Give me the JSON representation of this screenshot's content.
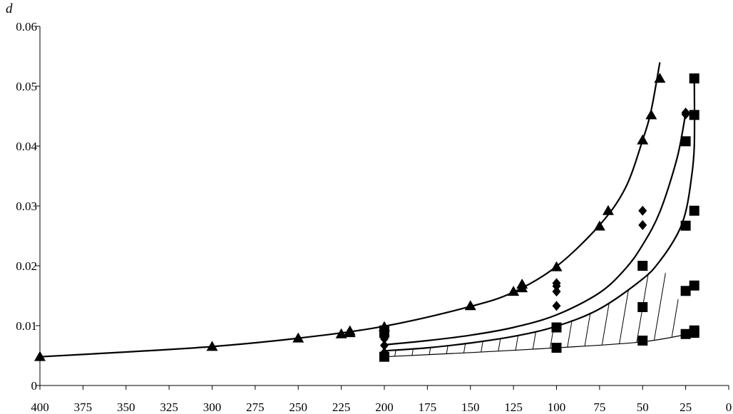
{
  "chart_data": {
    "type": "scatter",
    "title": "",
    "xlabel": "",
    "ylabel": "d",
    "xlim": [
      400,
      0
    ],
    "ylim": [
      0,
      0.06
    ],
    "x_reversed": true,
    "x_ticks": [
      400,
      375,
      350,
      325,
      300,
      275,
      250,
      225,
      200,
      175,
      150,
      125,
      100,
      75,
      50,
      25,
      0
    ],
    "y_ticks": [
      0,
      0.01,
      0.02,
      0.03,
      0.04,
      0.05,
      0.06
    ],
    "y_tick_labels": [
      "0",
      "0.01",
      "0.02",
      "0.03",
      "0.04",
      "0.05",
      "0.06"
    ],
    "grid": false,
    "legend": "none",
    "series": [
      {
        "marker": "triangle",
        "points": [
          [
            400,
            0.0048
          ],
          [
            300,
            0.0065
          ],
          [
            250,
            0.0079
          ],
          [
            225,
            0.0086
          ],
          [
            220,
            0.0088
          ],
          [
            220,
            0.0091
          ],
          [
            200,
            0.0098
          ],
          [
            150,
            0.0133
          ],
          [
            125,
            0.0157
          ],
          [
            120,
            0.0163
          ],
          [
            120,
            0.0169
          ],
          [
            100,
            0.0198
          ],
          [
            75,
            0.0266
          ],
          [
            70,
            0.0292
          ],
          [
            50,
            0.041
          ],
          [
            45,
            0.0452
          ],
          [
            40,
            0.0513
          ]
        ]
      },
      {
        "marker": "diamond",
        "points": [
          [
            200,
            0.0055
          ],
          [
            200,
            0.0067
          ],
          [
            200,
            0.0078
          ],
          [
            100,
            0.0133
          ],
          [
            100,
            0.0157
          ],
          [
            100,
            0.0166
          ],
          [
            100,
            0.0171
          ],
          [
            50,
            0.0268
          ],
          [
            50,
            0.0292
          ],
          [
            25,
            0.0453
          ],
          [
            25,
            0.0456
          ]
        ]
      },
      {
        "marker": "square",
        "points": [
          [
            200,
            0.0048
          ],
          [
            200,
            0.0088
          ],
          [
            200,
            0.0092
          ],
          [
            100,
            0.0063
          ],
          [
            100,
            0.0097
          ],
          [
            50,
            0.0075
          ],
          [
            50,
            0.0131
          ],
          [
            50,
            0.02
          ],
          [
            25,
            0.0086
          ],
          [
            25,
            0.0158
          ],
          [
            25,
            0.0267
          ],
          [
            25,
            0.0408
          ],
          [
            20,
            0.0088
          ],
          [
            20,
            0.0092
          ],
          [
            20,
            0.0167
          ],
          [
            20,
            0.0292
          ],
          [
            20,
            0.0452
          ],
          [
            20,
            0.0513
          ]
        ]
      }
    ],
    "curves": [
      {
        "marker": "triangle",
        "points": [
          [
            400,
            0.0048
          ],
          [
            350,
            0.0056
          ],
          [
            300,
            0.0065
          ],
          [
            250,
            0.0079
          ],
          [
            200,
            0.0099
          ],
          [
            150,
            0.0132
          ],
          [
            125,
            0.0156
          ],
          [
            100,
            0.0199
          ],
          [
            75,
            0.0268
          ],
          [
            60,
            0.033
          ],
          [
            50,
            0.041
          ],
          [
            45,
            0.046
          ],
          [
            40,
            0.054
          ]
        ]
      },
      {
        "marker": "diamond",
        "points": [
          [
            200,
            0.0068
          ],
          [
            175,
            0.0075
          ],
          [
            150,
            0.0084
          ],
          [
            125,
            0.0097
          ],
          [
            100,
            0.0118
          ],
          [
            75,
            0.0155
          ],
          [
            60,
            0.0195
          ],
          [
            50,
            0.0235
          ],
          [
            40,
            0.029
          ],
          [
            30,
            0.038
          ],
          [
            25,
            0.0455
          ]
        ]
      },
      {
        "marker": "square",
        "points": [
          [
            200,
            0.0058
          ],
          [
            175,
            0.0063
          ],
          [
            150,
            0.0071
          ],
          [
            125,
            0.0082
          ],
          [
            100,
            0.0099
          ],
          [
            75,
            0.0128
          ],
          [
            50,
            0.0178
          ],
          [
            40,
            0.0208
          ],
          [
            30,
            0.0252
          ],
          [
            25,
            0.029
          ],
          [
            22,
            0.034
          ],
          [
            20,
            0.04
          ],
          [
            20,
            0.052
          ]
        ]
      },
      {
        "marker": "none",
        "points": [
          [
            200,
            0.0048
          ],
          [
            150,
            0.0055
          ],
          [
            100,
            0.0063
          ],
          [
            50,
            0.0073
          ],
          [
            20,
            0.0088
          ]
        ]
      }
    ],
    "hatched_region": {
      "between": [
        "square curve",
        "bottom boundary"
      ],
      "x_range": [
        200,
        20
      ]
    }
  }
}
